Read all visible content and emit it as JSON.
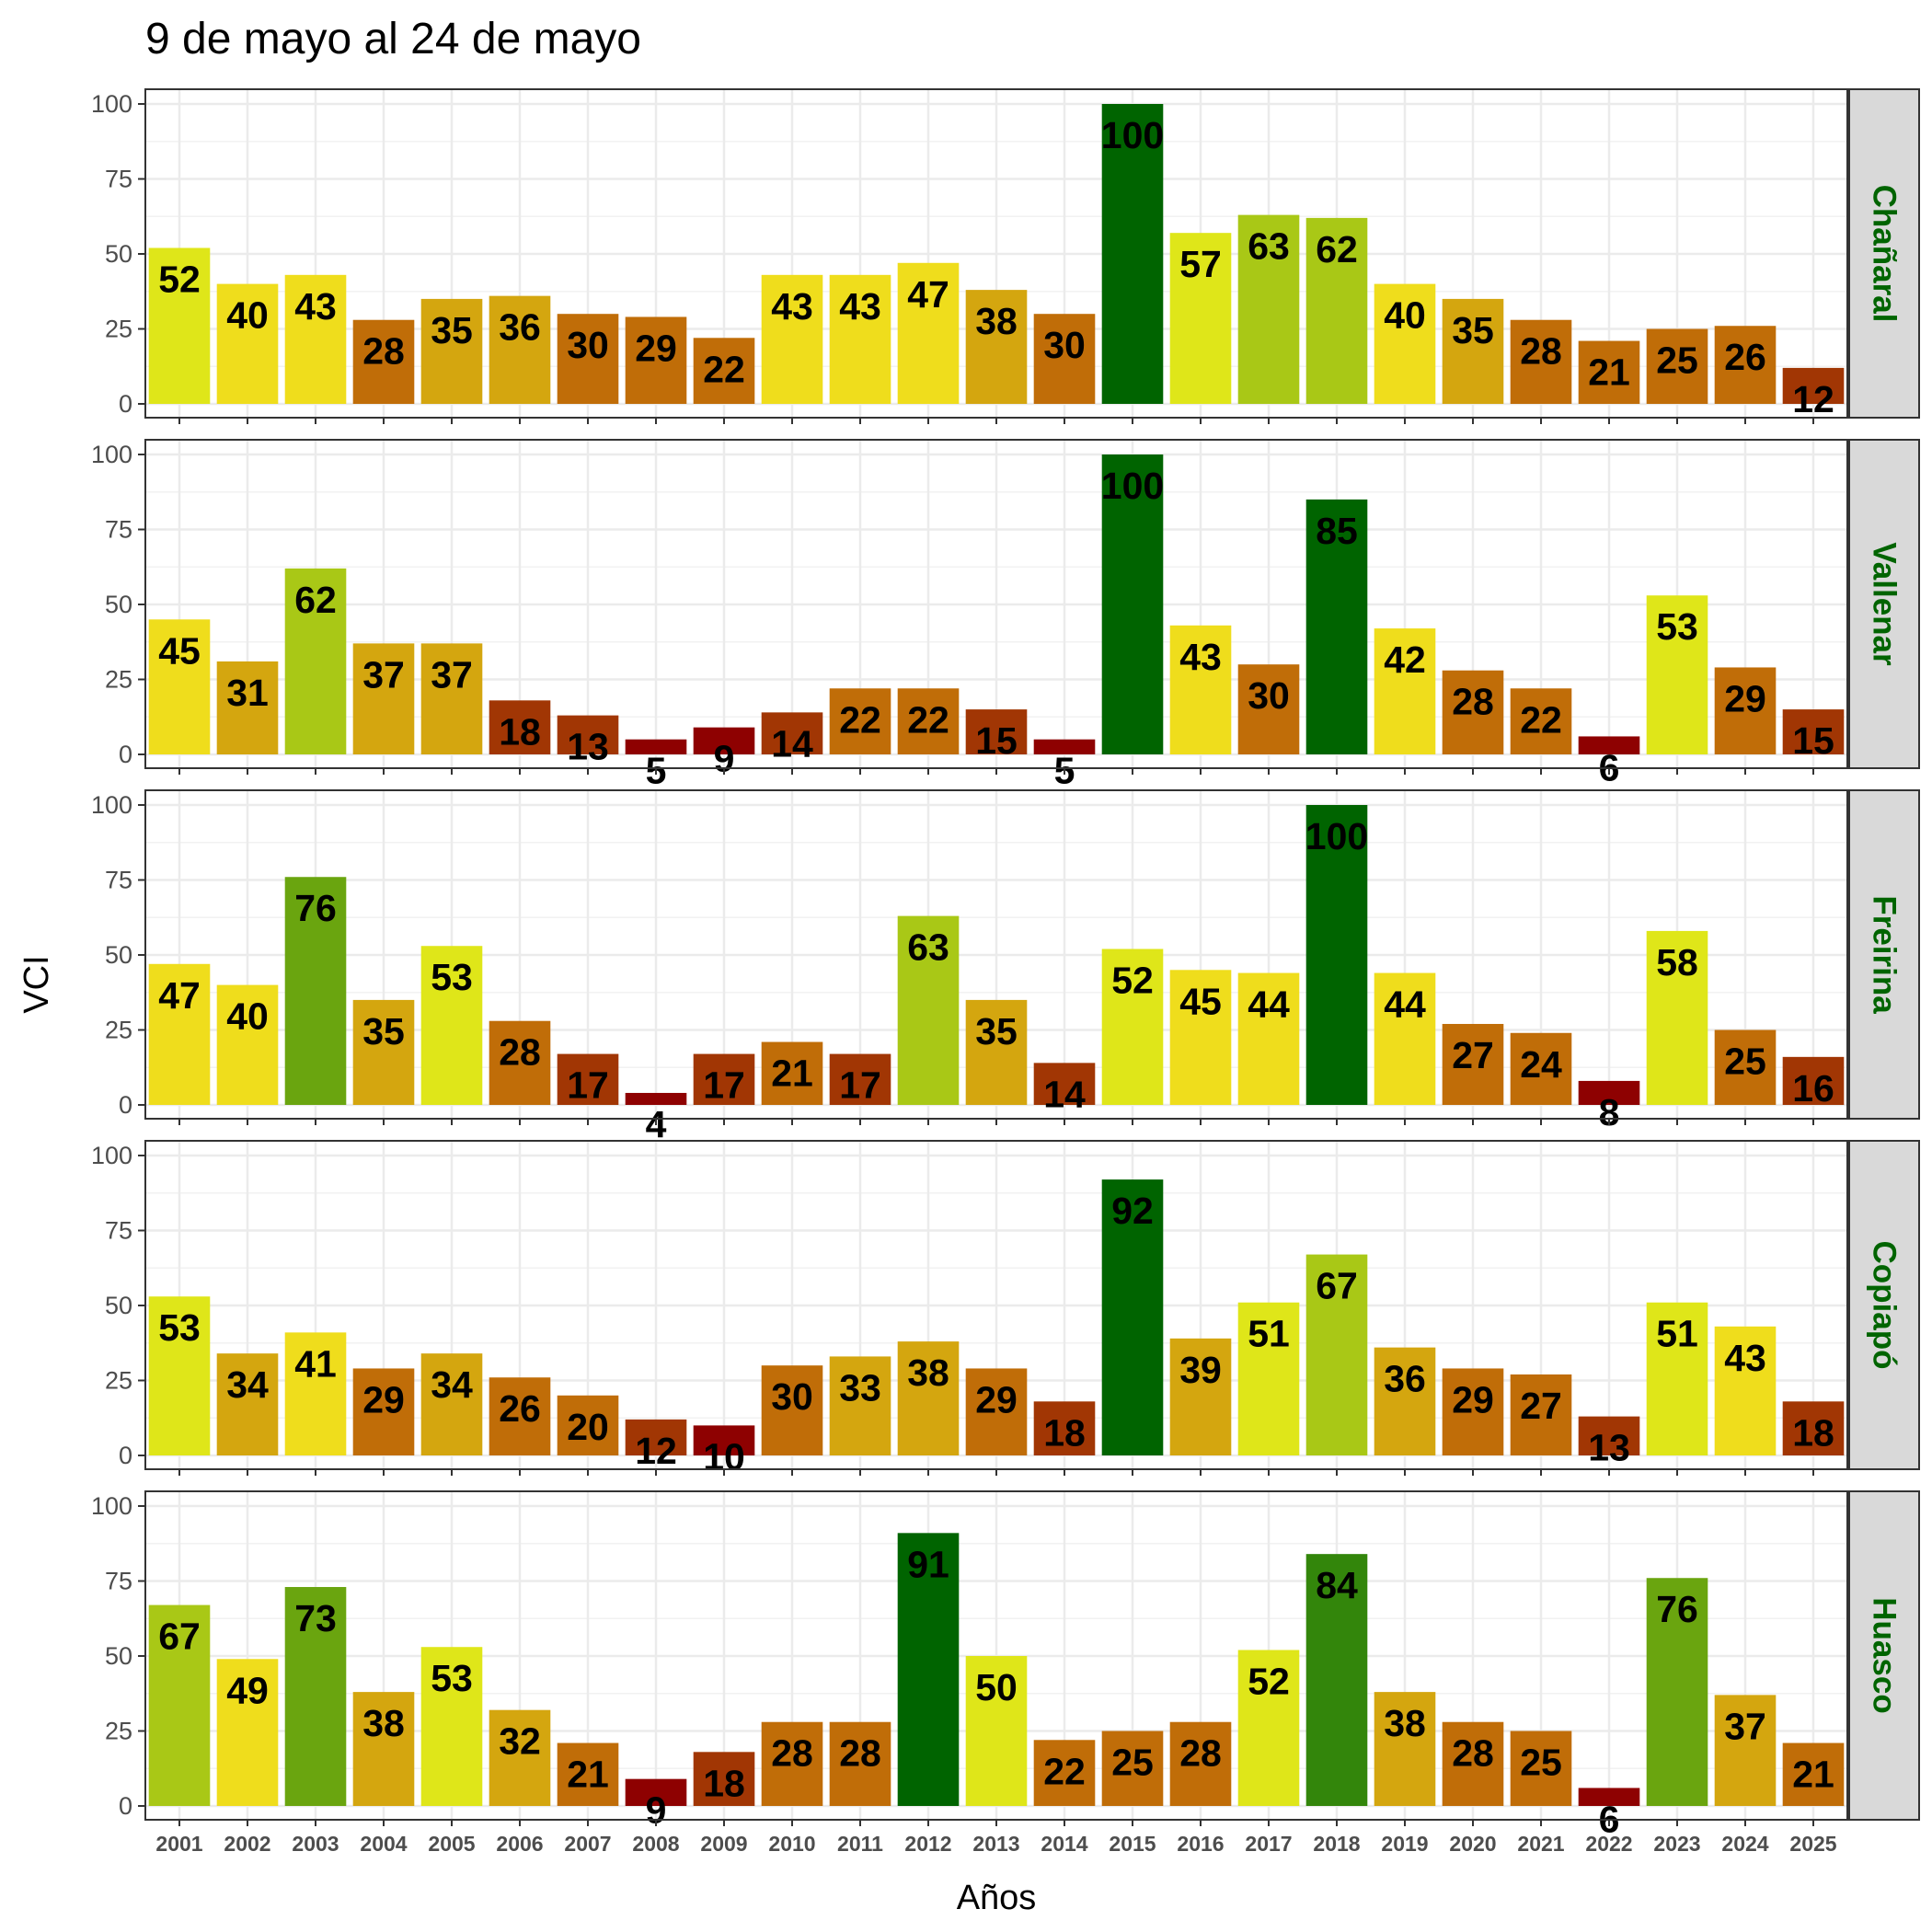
{
  "chart_data": {
    "type": "bar",
    "title": "9 de mayo al 24 de mayo",
    "xlabel": "Años",
    "ylabel": "VCI",
    "ylim": [
      0,
      100
    ],
    "yticks": [
      "0",
      "25",
      "50",
      "75",
      "100"
    ],
    "categories": [
      "2001",
      "2002",
      "2003",
      "2004",
      "2005",
      "2006",
      "2007",
      "2008",
      "2009",
      "2010",
      "2011",
      "2012",
      "2013",
      "2014",
      "2015",
      "2016",
      "2017",
      "2018",
      "2019",
      "2020",
      "2021",
      "2022",
      "2023",
      "2024",
      "2025"
    ],
    "grid": true,
    "strip_color": "#006400",
    "series": [
      {
        "name": "Chañaral",
        "values": [
          52,
          40,
          43,
          28,
          35,
          36,
          30,
          29,
          22,
          43,
          43,
          47,
          38,
          30,
          100,
          57,
          63,
          62,
          40,
          35,
          28,
          21,
          25,
          26,
          12
        ]
      },
      {
        "name": "Vallenar",
        "values": [
          45,
          31,
          62,
          37,
          37,
          18,
          13,
          5,
          9,
          14,
          22,
          22,
          15,
          5,
          100,
          43,
          30,
          85,
          42,
          28,
          22,
          6,
          53,
          29,
          15
        ]
      },
      {
        "name": "Freirina",
        "values": [
          47,
          40,
          76,
          35,
          53,
          28,
          17,
          4,
          17,
          21,
          17,
          63,
          35,
          14,
          52,
          45,
          44,
          100,
          44,
          27,
          24,
          8,
          58,
          25,
          16
        ]
      },
      {
        "name": "Copiapó",
        "values": [
          53,
          34,
          41,
          29,
          34,
          26,
          20,
          12,
          10,
          30,
          33,
          38,
          29,
          18,
          92,
          39,
          51,
          67,
          36,
          29,
          27,
          13,
          51,
          43,
          18
        ]
      },
      {
        "name": "Huasco",
        "values": [
          67,
          49,
          73,
          38,
          53,
          32,
          21,
          9,
          18,
          28,
          28,
          91,
          50,
          22,
          25,
          28,
          52,
          84,
          38,
          28,
          25,
          6,
          76,
          37,
          21
        ]
      }
    ]
  }
}
